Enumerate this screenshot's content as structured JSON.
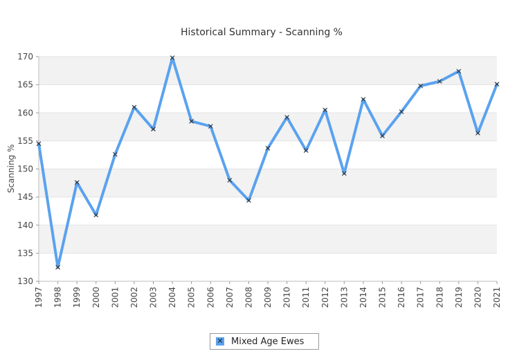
{
  "chart_data": {
    "type": "line",
    "title": "Historical Summary - Scanning %",
    "xlabel": "",
    "ylabel": "Scanning %",
    "ylim": [
      130,
      170
    ],
    "yticks": [
      130,
      135,
      140,
      145,
      150,
      155,
      160,
      165,
      170
    ],
    "grid": "horizontal alternating bands",
    "legend_position": "bottom-center",
    "categories": [
      "1997",
      "1998",
      "1999",
      "2000",
      "2001",
      "2002",
      "2003",
      "2004",
      "2005",
      "2006",
      "2007",
      "2008",
      "2009",
      "2010",
      "2011",
      "2012",
      "2013",
      "2014",
      "2015",
      "2016",
      "2017",
      "2018",
      "2019",
      "2020",
      "2021"
    ],
    "series": [
      {
        "name": "Mixed Age Ewes",
        "color": "#5aa2ef",
        "marker": "x",
        "values": [
          154.5,
          132.5,
          147.6,
          141.8,
          152.6,
          161.0,
          157.1,
          169.8,
          158.5,
          157.6,
          148.0,
          144.4,
          153.7,
          159.2,
          153.3,
          160.5,
          149.2,
          162.4,
          155.9,
          160.2,
          164.8,
          165.6,
          167.4,
          156.4,
          165.1
        ]
      }
    ]
  },
  "legend": {
    "marker_glyph": "✕",
    "label": "Mixed Age Ewes"
  }
}
